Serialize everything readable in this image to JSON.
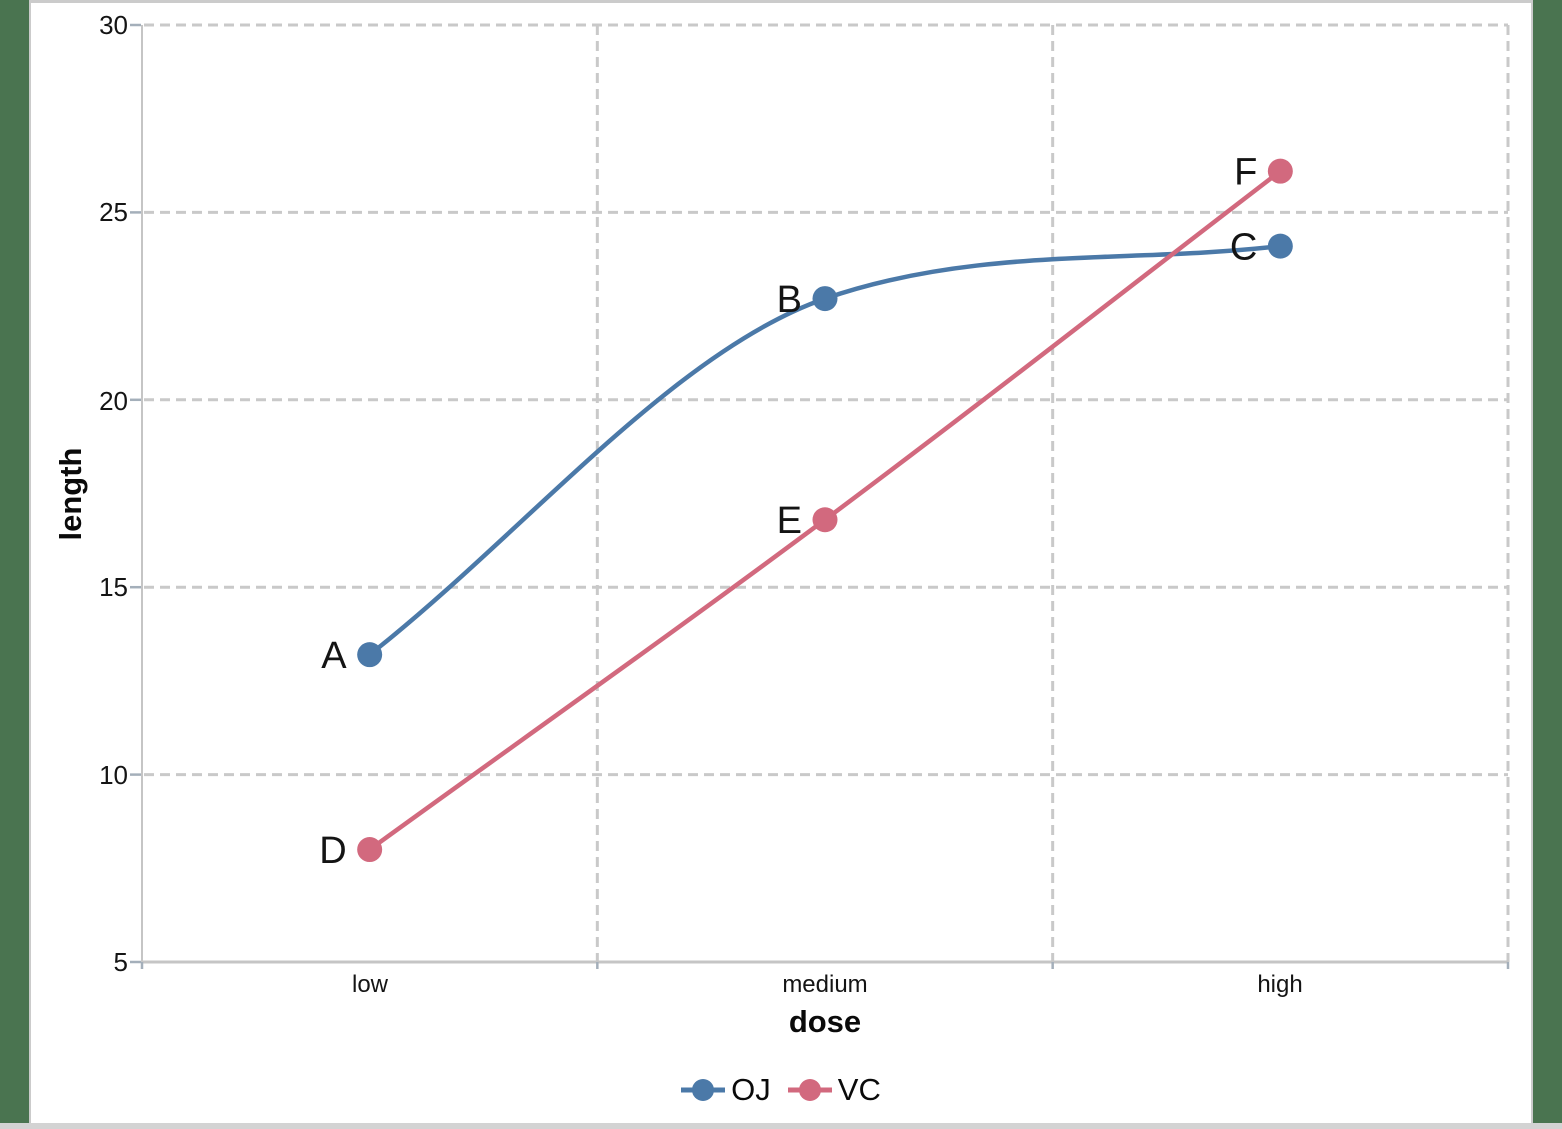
{
  "frame": {
    "side_band_color": "#4A7450",
    "panel_edge_color": "#CBCBCB",
    "bottom_bar_color": "#D3D3D3",
    "background": "#FFFFFF"
  },
  "chart_data": {
    "type": "line",
    "title": "",
    "xlabel": "dose",
    "ylabel": "length",
    "categories": [
      "low",
      "medium",
      "high"
    ],
    "series": [
      {
        "name": "OJ",
        "color": "#4B79A8",
        "values": [
          13.2,
          22.7,
          24.1
        ],
        "point_labels": [
          "A",
          "B",
          "C"
        ],
        "curve": "smooth"
      },
      {
        "name": "VC",
        "color": "#D2697E",
        "values": [
          8.0,
          16.8,
          26.1
        ],
        "point_labels": [
          "D",
          "E",
          "F"
        ],
        "curve": "smooth"
      }
    ],
    "ylim": [
      5,
      30
    ],
    "y_ticks": [
      30,
      25,
      20,
      15,
      10,
      5
    ],
    "y_tick_labels": [
      "30",
      "25",
      "20",
      "15",
      "10",
      "5"
    ],
    "grid": {
      "horizontal": "dashed",
      "vertical_at_category_boundaries": "dashed",
      "color": "#C9C9C9"
    },
    "axis_color": "#C5C5C5",
    "tick_color": "#A4AFBA",
    "text_color": "#141414",
    "legend_position": "bottom-center"
  }
}
